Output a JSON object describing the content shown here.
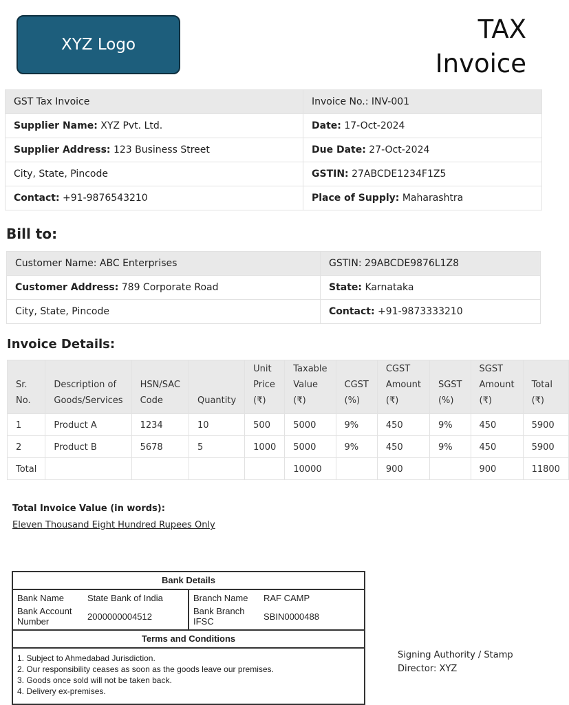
{
  "header": {
    "logo": "XYZ Logo",
    "title_line1": "TAX",
    "title_line2": "Invoice"
  },
  "supplier": {
    "heading": "GST Tax Invoice",
    "invoice_no_label": "Invoice No.:",
    "invoice_no": "INV-001",
    "name_label": "Supplier Name:",
    "name": "XYZ Pvt. Ltd.",
    "date_label": "Date:",
    "date": "17-Oct-2024",
    "address_label": "Supplier Address:",
    "address": "123 Business Street",
    "due_label": "Due Date:",
    "due": "27-Oct-2024",
    "city": "City, State, Pincode",
    "gstin_label": "GSTIN:",
    "gstin": "27ABCDE1234F1Z5",
    "contact_label": "Contact:",
    "contact": "+91-9876543210",
    "place_label": "Place of Supply:",
    "place": "Maharashtra"
  },
  "bill_to": {
    "heading": "Bill to:",
    "name": "Customer Name: ABC Enterprises",
    "gstin": "GSTIN: 29ABCDE9876L1Z8",
    "address_label": "Customer Address:",
    "address": "789 Corporate Road",
    "state_label": "State:",
    "state": "Karnataka",
    "city": "City, State, Pincode",
    "contact_label": "Contact:",
    "contact": "+91-9873333210"
  },
  "invoice_details": {
    "heading": "Invoice Details:",
    "columns": [
      [
        "Sr.",
        "No."
      ],
      [
        "Description of",
        "Goods/Services"
      ],
      [
        "HSN/SAC",
        "Code"
      ],
      [
        "Quantity"
      ],
      [
        "Unit",
        "Price",
        "(₹)"
      ],
      [
        "Taxable",
        "Value",
        "(₹)"
      ],
      [
        "CGST",
        "(%)"
      ],
      [
        "CGST",
        "Amount",
        "(₹)"
      ],
      [
        "SGST",
        "(%)"
      ],
      [
        "SGST",
        "Amount",
        "(₹)"
      ],
      [
        "Total",
        "(₹)"
      ]
    ],
    "rows": [
      [
        "1",
        "Product A",
        "1234",
        "10",
        "500",
        "5000",
        "9%",
        "450",
        "9%",
        "450",
        "5900"
      ],
      [
        "2",
        "Product B",
        "5678",
        "5",
        "1000",
        "5000",
        "9%",
        "450",
        "9%",
        "450",
        "5900"
      ],
      [
        "Total",
        "",
        "",
        "",
        "",
        "10000",
        "",
        "900",
        "",
        "900",
        "11800"
      ]
    ]
  },
  "total_words": {
    "label": "Total Invoice Value (in words):",
    "value": "Eleven Thousand Eight Hundred Rupees Only"
  },
  "bank": {
    "heading": "Bank Details",
    "bank_name_label": "Bank Name",
    "bank_name": "State Bank of India",
    "branch_label": "Branch Name",
    "branch": "RAF CAMP",
    "account_label": "Bank Account Number",
    "account": "2000000004512",
    "ifsc_label": "Bank Branch IFSC",
    "ifsc": "SBIN0000488"
  },
  "terms": {
    "heading": "Terms and Conditions",
    "items": [
      "1. Subject to Ahmedabad Jurisdiction.",
      "2. Our responsibility ceases as soon as the goods leave our premises.",
      "3. Goods once sold will not be taken back.",
      "4. Delivery ex-premises."
    ]
  },
  "signature": {
    "line1": "Signing Authority / Stamp",
    "line2": "Director: XYZ"
  }
}
